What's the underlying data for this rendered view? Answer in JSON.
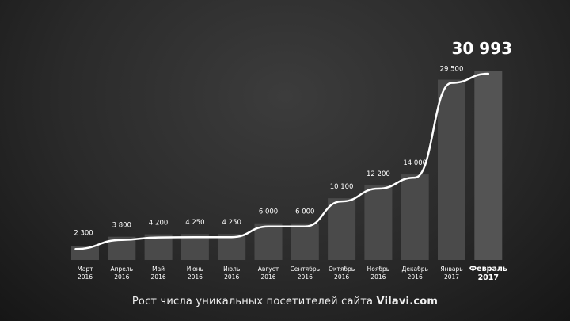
{
  "chart_data": {
    "type": "bar",
    "categories": [
      [
        "Март",
        "2016"
      ],
      [
        "Апрель",
        "2016"
      ],
      [
        "Май",
        "2016"
      ],
      [
        "Июнь",
        "2016"
      ],
      [
        "Июль",
        "2016"
      ],
      [
        "Август",
        "2016"
      ],
      [
        "Сентябрь",
        "2016"
      ],
      [
        "Октябрь",
        "2016"
      ],
      [
        "Ноябрь",
        "2016"
      ],
      [
        "Декабрь",
        "2016"
      ],
      [
        "Январь",
        "2017"
      ],
      [
        "Февраль",
        "2017"
      ]
    ],
    "values": [
      2300,
      3800,
      4200,
      4250,
      4250,
      6000,
      6000,
      10100,
      12200,
      14000,
      29500,
      30993
    ],
    "value_labels": [
      "2 300",
      "3 800",
      "4 200",
      "4 250",
      "4 250",
      "6 000",
      "6 000",
      "10 100",
      "12 200",
      "14 000",
      "29 500",
      "30 993"
    ],
    "highlight_index": 11,
    "overlay_line": true,
    "ylim": [
      0,
      31000
    ],
    "grid": false,
    "colors": {
      "bar": "#4a4a4a",
      "bar_highlight": "#545454",
      "line": "#ffffff",
      "text": "#ffffff"
    }
  },
  "caption": {
    "prefix": "Рост числа уникальных посетителей сайта ",
    "site": "Vilavi.com"
  }
}
